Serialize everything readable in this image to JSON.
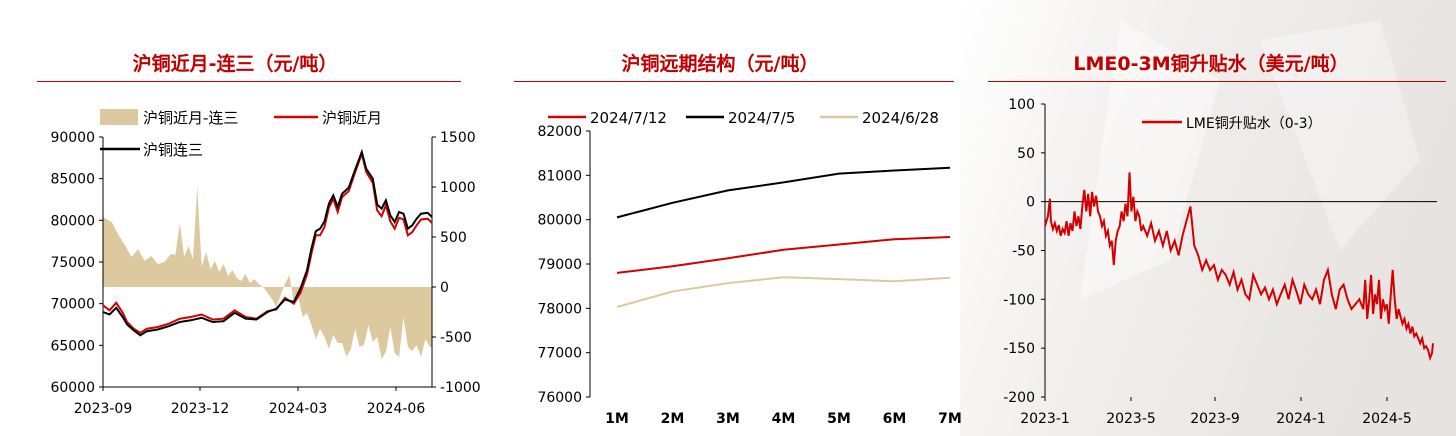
{
  "chart_data": [
    {
      "type": "line+area",
      "title": "沪铜近月-连三（元/吨）",
      "legend": [
        "沪铜近月-连三",
        "沪铜近月",
        "沪铜连三"
      ],
      "yleft": {
        "ticks": [
          60000,
          65000,
          70000,
          75000,
          80000,
          85000,
          90000
        ],
        "ylim": [
          60000,
          90000
        ]
      },
      "yright": {
        "ticks": [
          -1000,
          -500,
          0,
          500,
          1000,
          1500
        ],
        "ylim": [
          -1000,
          1500
        ]
      },
      "xticks": [
        "2023-09",
        "2023-12",
        "2024-03",
        "2024-06"
      ],
      "colors": {
        "spread": "#dcc9a0",
        "near": "#d40000",
        "third": "#000000"
      },
      "series": [
        {
          "name": "沪铜近月",
          "axis": "left",
          "x": [
            0,
            6,
            12,
            18,
            22,
            28,
            34,
            40,
            50,
            60,
            70,
            80,
            90,
            100,
            110,
            120,
            130,
            140,
            150,
            158,
            166,
            174,
            180,
            186,
            190,
            194,
            198,
            202,
            206,
            210,
            214,
            218,
            224,
            230,
            236,
            240,
            246,
            250,
            254,
            258,
            262,
            266,
            270,
            274,
            278,
            282,
            286,
            290,
            296,
            300
          ],
          "values": [
            69800,
            69200,
            70100,
            68900,
            67800,
            67000,
            66500,
            67000,
            67200,
            67600,
            68200,
            68400,
            68700,
            68100,
            68200,
            69200,
            68400,
            68200,
            69100,
            69300,
            70700,
            70000,
            71300,
            73500,
            76000,
            78200,
            78200,
            79200,
            81500,
            82600,
            81000,
            82800,
            83500,
            85800,
            88000,
            85800,
            84500,
            81200,
            80500,
            81800,
            79900,
            79000,
            80300,
            80100,
            78200,
            78600,
            79400,
            80100,
            80200,
            79700
          ]
        },
        {
          "name": "沪铜连三",
          "axis": "left",
          "x": [
            0,
            6,
            12,
            18,
            22,
            28,
            34,
            40,
            50,
            60,
            70,
            80,
            90,
            100,
            110,
            120,
            130,
            140,
            150,
            158,
            166,
            174,
            180,
            186,
            190,
            194,
            198,
            202,
            206,
            210,
            214,
            218,
            224,
            230,
            236,
            240,
            246,
            250,
            254,
            258,
            262,
            266,
            270,
            274,
            278,
            282,
            286,
            290,
            296,
            300
          ],
          "values": [
            69000,
            68700,
            69500,
            68400,
            67500,
            66800,
            66200,
            66700,
            66900,
            67300,
            67800,
            68000,
            68300,
            67800,
            67900,
            68900,
            68200,
            68100,
            69000,
            69400,
            70500,
            70200,
            71800,
            74000,
            76600,
            78700,
            79000,
            79900,
            82000,
            83000,
            81600,
            83200,
            83900,
            86100,
            88200,
            86200,
            85000,
            81900,
            81400,
            82400,
            80600,
            79800,
            81000,
            80800,
            79000,
            79400,
            80200,
            80800,
            80900,
            80400
          ]
        },
        {
          "name": "沪铜近月-连三",
          "axis": "right",
          "type": "area",
          "x": [
            0,
            8,
            14,
            20,
            26,
            32,
            38,
            44,
            50,
            56,
            62,
            66,
            70,
            74,
            78,
            82,
            86,
            90,
            94,
            98,
            102,
            106,
            110,
            114,
            118,
            122,
            126,
            130,
            134,
            138,
            142,
            146,
            150,
            154,
            158,
            162,
            166,
            170,
            174,
            178,
            182,
            186,
            190,
            194,
            198,
            202,
            206,
            210,
            214,
            218,
            222,
            226,
            230,
            234,
            238,
            242,
            246,
            250,
            254,
            258,
            262,
            266,
            270,
            274,
            278,
            282,
            286,
            290,
            294,
            298,
            300
          ],
          "values": [
            700,
            650,
            520,
            420,
            300,
            380,
            260,
            310,
            230,
            250,
            330,
            320,
            640,
            300,
            410,
            280,
            1000,
            200,
            350,
            180,
            260,
            150,
            230,
            110,
            170,
            90,
            60,
            130,
            40,
            80,
            30,
            0,
            -60,
            -120,
            -200,
            -80,
            30,
            120,
            -150,
            -100,
            -300,
            -260,
            -380,
            -520,
            -420,
            -500,
            -620,
            -480,
            -560,
            -560,
            -700,
            -620,
            -420,
            -600,
            -580,
            -380,
            -550,
            -500,
            -720,
            -650,
            -400,
            -660,
            -700,
            -300,
            -600,
            -640,
            -580,
            -700,
            -520,
            -600,
            -600
          ]
        }
      ]
    },
    {
      "type": "line",
      "title": "沪铜远期结构（元/吨）",
      "categories": [
        "1M",
        "2M",
        "3M",
        "4M",
        "5M",
        "6M",
        "7M"
      ],
      "yticks": [
        76000,
        77000,
        78000,
        79000,
        80000,
        81000,
        82000
      ],
      "ylim": [
        76000,
        82000
      ],
      "series": [
        {
          "name": "2024/7/12",
          "color": "#d40000",
          "values": [
            78800,
            78950,
            79130,
            79320,
            79440,
            79560,
            79610
          ]
        },
        {
          "name": "2024/7/5",
          "color": "#000000",
          "values": [
            80050,
            80380,
            80660,
            80840,
            81040,
            81110,
            81170
          ]
        },
        {
          "name": "2024/6/28",
          "color": "#dcc9a0",
          "values": [
            78030,
            78380,
            78570,
            78700,
            78660,
            78610,
            78690
          ]
        }
      ]
    },
    {
      "type": "line",
      "title": "LME0-3M铜升贴水（美元/吨）",
      "yticks": [
        -200,
        -150,
        -100,
        -50,
        0,
        50,
        100
      ],
      "ylim": [
        -200,
        100
      ],
      "xticks": [
        "2023-1",
        "2023-5",
        "2023-9",
        "2024-1",
        "2024-5"
      ],
      "series": [
        {
          "name": "LME铜升贴水（0-3）",
          "color": "#d40000",
          "x": [
            0,
            3,
            5,
            6,
            8,
            10,
            12,
            14,
            16,
            18,
            20,
            22,
            24,
            26,
            28,
            30,
            32,
            34,
            36,
            38,
            40,
            42,
            44,
            46,
            48,
            50,
            52,
            54,
            56,
            58,
            60,
            62,
            64,
            66,
            68,
            70,
            72,
            74,
            76,
            78,
            80,
            82,
            84,
            86,
            88,
            90,
            92,
            94,
            96,
            98,
            100,
            104,
            108,
            112,
            116,
            120,
            124,
            128,
            132,
            136,
            140,
            144,
            148,
            152,
            156,
            160,
            164,
            168,
            172,
            176,
            180,
            184,
            188,
            192,
            196,
            200,
            204,
            208,
            212,
            216,
            220,
            224,
            228,
            232,
            236,
            240,
            244,
            248,
            252,
            256,
            260,
            264,
            268,
            272,
            276,
            280,
            284,
            288,
            292,
            296,
            300,
            304,
            308,
            312,
            316,
            320,
            324,
            326,
            328,
            330,
            332,
            334,
            336,
            338,
            340,
            342,
            344,
            346,
            348,
            350,
            352,
            354,
            356,
            358,
            360,
            362,
            364,
            366,
            368,
            370,
            372,
            374,
            376,
            378,
            380,
            382,
            384,
            386,
            388,
            390,
            392,
            394,
            395
          ],
          "values": [
            -25,
            -15,
            3,
            -20,
            -28,
            -22,
            -30,
            -24,
            -35,
            -28,
            -32,
            -20,
            -35,
            -22,
            -30,
            -10,
            -25,
            -15,
            -28,
            -5,
            12,
            -10,
            8,
            -15,
            10,
            -5,
            6,
            -10,
            -15,
            -25,
            -20,
            -35,
            -30,
            -45,
            -40,
            -65,
            -40,
            -30,
            -25,
            -10,
            -20,
            -2,
            -15,
            30,
            -10,
            5,
            -20,
            -10,
            -15,
            -30,
            -25,
            -35,
            -22,
            -40,
            -30,
            -45,
            -30,
            -50,
            -40,
            -55,
            -35,
            -20,
            -5,
            -45,
            -55,
            -70,
            -60,
            -70,
            -65,
            -80,
            -70,
            -75,
            -85,
            -72,
            -90,
            -80,
            -95,
            -100,
            -75,
            -85,
            -95,
            -88,
            -100,
            -90,
            -105,
            -95,
            -85,
            -100,
            -80,
            -92,
            -105,
            -85,
            -95,
            -100,
            -90,
            -105,
            -80,
            -70,
            -95,
            -110,
            -90,
            -85,
            -100,
            -110,
            -105,
            -100,
            -110,
            -80,
            -120,
            -100,
            -75,
            -115,
            -95,
            -105,
            -80,
            -120,
            -100,
            -110,
            -105,
            -125,
            -95,
            -70,
            -100,
            -120,
            -110,
            -118,
            -125,
            -120,
            -130,
            -125,
            -135,
            -128,
            -138,
            -135,
            -140,
            -145,
            -140,
            -150,
            -148,
            -152,
            -160,
            -155,
            -145
          ]
        }
      ]
    }
  ]
}
